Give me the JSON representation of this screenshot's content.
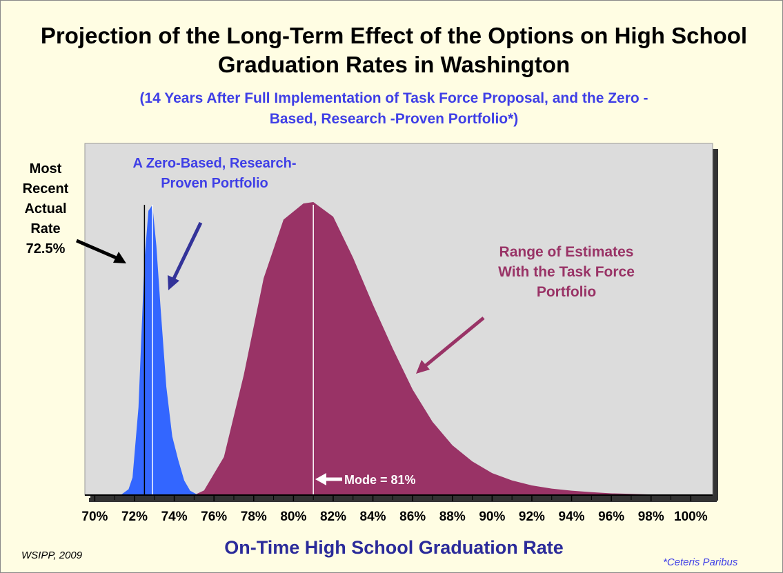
{
  "chart_data": {
    "type": "area",
    "title": "Projection of the Long-Term Effect of the Options on High School Graduation Rates in Washington",
    "subtitle": "(14 Years After Full Implementation of Task Force Proposal, and the Zero -Based, Research -Proven Portfolio*)",
    "x_label": "On-Time High School Graduation Rate",
    "xlim": [
      69.5,
      101.1
    ],
    "ylim": [
      0,
      120
    ],
    "xticks": [
      {
        "value": 70,
        "label": "70%"
      },
      {
        "value": 72,
        "label": "72%"
      },
      {
        "value": 74,
        "label": "74%"
      },
      {
        "value": 76,
        "label": "76%"
      },
      {
        "value": 78,
        "label": "78%"
      },
      {
        "value": 80,
        "label": "80%"
      },
      {
        "value": 82,
        "label": "82%"
      },
      {
        "value": 84,
        "label": "84%"
      },
      {
        "value": 86,
        "label": "86%"
      },
      {
        "value": 88,
        "label": "88%"
      },
      {
        "value": 90,
        "label": "90%"
      },
      {
        "value": 92,
        "label": "92%"
      },
      {
        "value": 94,
        "label": "94%"
      },
      {
        "value": 96,
        "label": "96%"
      },
      {
        "value": 98,
        "label": "98%"
      },
      {
        "value": 100,
        "label": "100%"
      }
    ],
    "series": [
      {
        "name": "Range of Estimates With the Task Force Portfolio",
        "color": "#993366",
        "x": [
          75,
          75.5,
          76.5,
          77.5,
          78.5,
          79.5,
          80.5,
          81,
          82,
          83,
          84,
          85,
          86,
          87,
          88,
          89,
          90,
          91,
          92,
          93,
          94,
          95,
          96,
          97,
          98,
          99,
          100
        ],
        "values": [
          0,
          1.6,
          13,
          41,
          74,
          94,
          99.5,
          100,
          95,
          81,
          65,
          50,
          36,
          25,
          17,
          11.5,
          7.5,
          5,
          3.3,
          2.2,
          1.5,
          1,
          0.6,
          0.4,
          0.2,
          0.1,
          0
        ]
      },
      {
        "name": "A Zero-Based, Research-Proven Portfolio",
        "color": "#3366ff",
        "x": [
          71.3,
          71.7,
          71.9,
          72.2,
          72.5,
          72.7,
          72.9,
          73.1,
          73.3,
          73.6,
          73.9,
          74.2,
          74.5,
          74.8,
          75.2
        ],
        "values": [
          0,
          2,
          6,
          30,
          80,
          97,
          99,
          85,
          65,
          37,
          20,
          12,
          5,
          1.5,
          0
        ]
      }
    ],
    "vlines": [
      {
        "x": 72.5,
        "color": "#000000"
      },
      {
        "x": 72.9,
        "color": "#ffffff"
      },
      {
        "x": 81,
        "color": "#ffffff"
      }
    ],
    "annotations": {
      "actual": "Most Recent Actual Rate 72.5%",
      "mode": "Mode = 81%"
    },
    "source": "WSIPP, 2009",
    "footnote": "*Ceteris Paribus"
  }
}
